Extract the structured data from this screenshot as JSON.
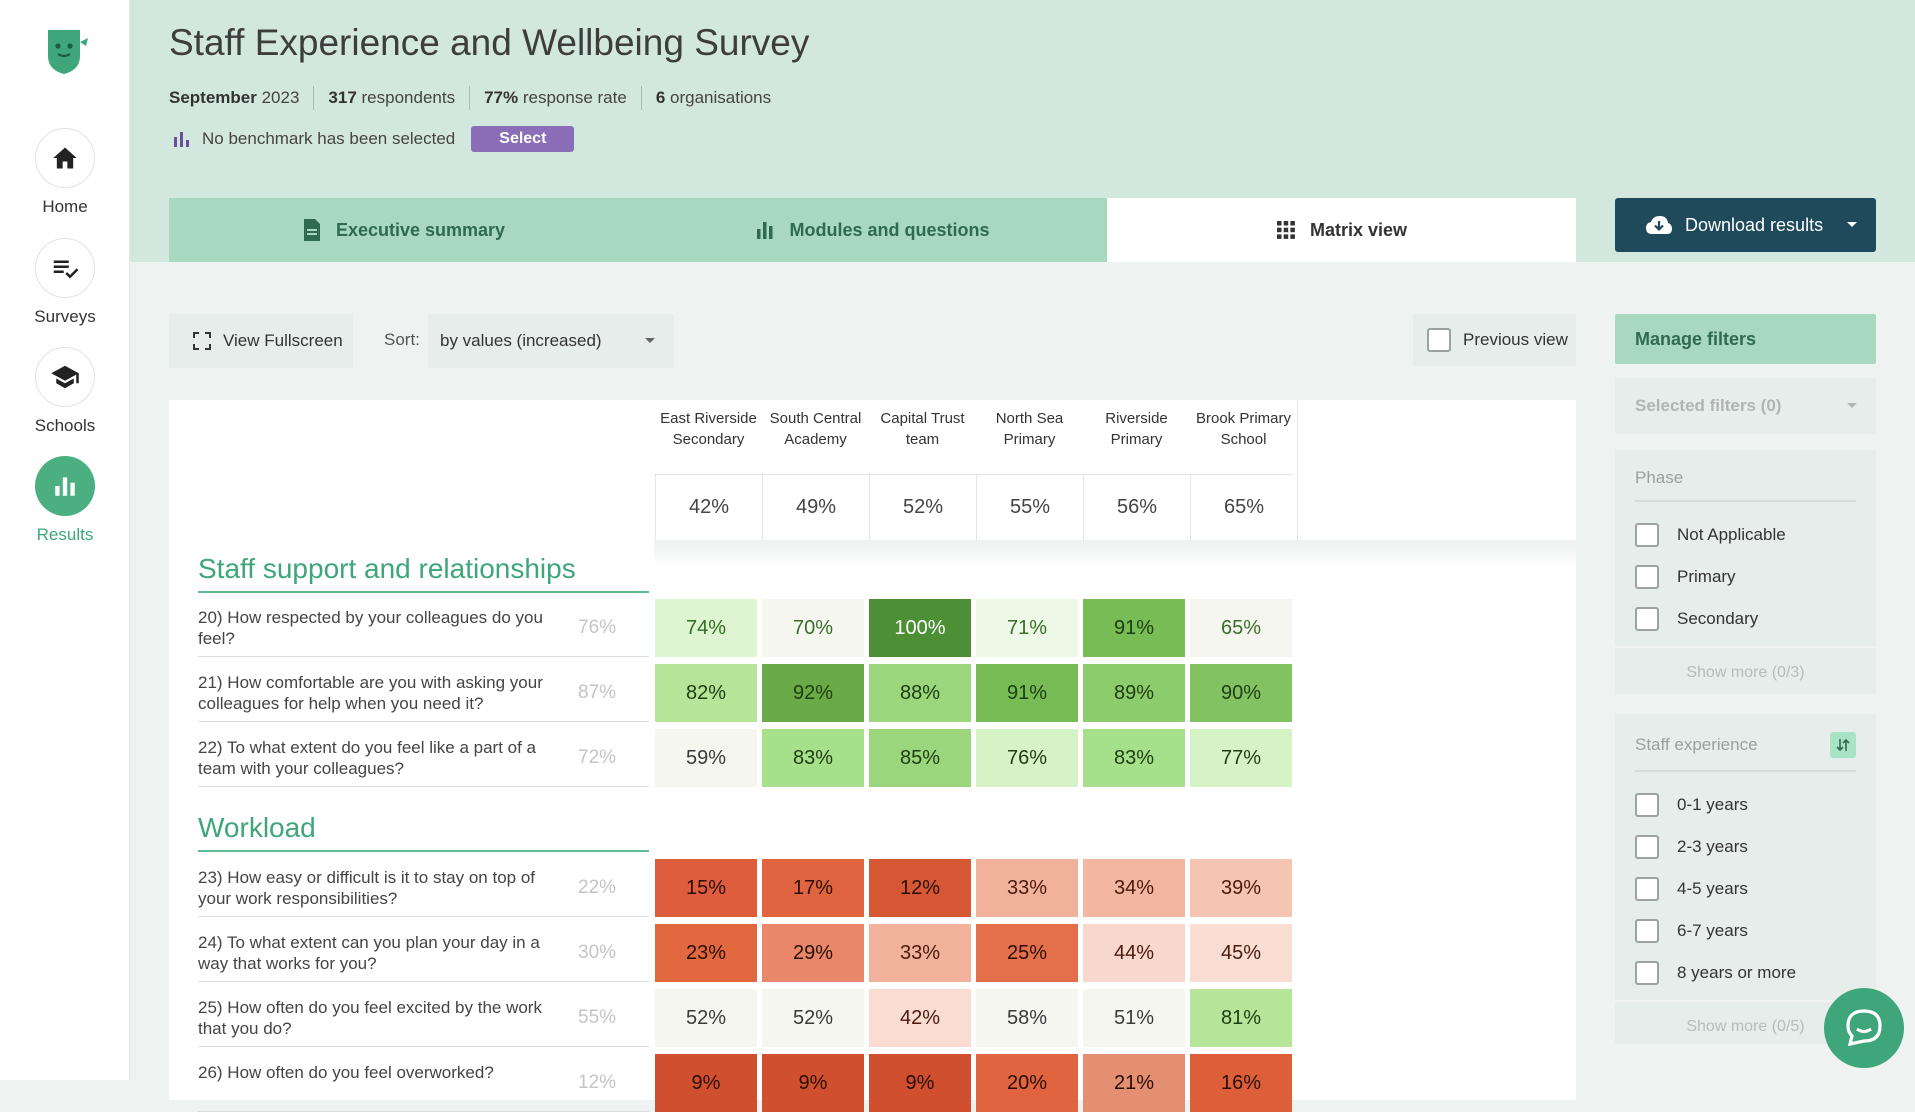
{
  "nav": [
    {
      "label": "Home",
      "icon": "home-icon"
    },
    {
      "label": "Surveys",
      "icon": "checklist-icon"
    },
    {
      "label": "Schools",
      "icon": "graduation-cap-icon"
    },
    {
      "label": "Results",
      "icon": "bar-chart-icon",
      "active": true
    }
  ],
  "header": {
    "title": "Staff Experience and Wellbeing Survey",
    "meta": {
      "date_strong": "September",
      "date_rest": " 2023",
      "respondents_strong": "317",
      "respondents_rest": " respondents",
      "rate_strong": "77%",
      "rate_rest": " response rate",
      "orgs_strong": "6",
      "orgs_rest": " organisations"
    },
    "benchmark_text": "No benchmark has been selected",
    "select_label": "Select"
  },
  "tabs": [
    {
      "label": "Executive summary",
      "icon": "document-icon"
    },
    {
      "label": "Modules and questions",
      "icon": "bar-chart-icon"
    },
    {
      "label": "Matrix view",
      "icon": "grid-icon",
      "active": true
    }
  ],
  "download_label": "Download results",
  "toolbar": {
    "fullscreen_label": "View Fullscreen",
    "sort_label": "Sort:",
    "sort_value": "by values (increased)",
    "previous_view_label": "Previous view"
  },
  "matrix": {
    "columns": [
      {
        "name": "East Riverside Secondary",
        "overall": "42%"
      },
      {
        "name": "South Central Academy",
        "overall": "49%"
      },
      {
        "name": "Capital Trust team",
        "overall": "52%"
      },
      {
        "name": "North Sea Primary",
        "overall": "55%"
      },
      {
        "name": "Riverside Primary",
        "overall": "56%"
      },
      {
        "name": "Brook Primary School",
        "overall": "65%"
      }
    ],
    "sections": [
      {
        "title": "Staff support and relationships",
        "questions": [
          {
            "text": "20) How respected by your colleagues do you feel?",
            "avg": "76%",
            "values": [
              "74%",
              "70%",
              "100%",
              "71%",
              "91%",
              "65%"
            ]
          },
          {
            "text": "21) How comfortable are you with asking your colleagues for help when you need it?",
            "avg": "87%",
            "values": [
              "82%",
              "92%",
              "88%",
              "91%",
              "89%",
              "90%"
            ]
          },
          {
            "text": "22) To what extent do you feel like a part of a team with your colleagues?",
            "avg": "72%",
            "values": [
              "59%",
              "83%",
              "85%",
              "76%",
              "83%",
              "77%"
            ]
          }
        ]
      },
      {
        "title": "Workload",
        "questions": [
          {
            "text": "23) How easy or difficult is it to stay on top of your work responsibilities?",
            "avg": "22%",
            "values": [
              "15%",
              "17%",
              "12%",
              "33%",
              "34%",
              "39%"
            ]
          },
          {
            "text": "24) To what extent can you plan your day in a way that works for you?",
            "avg": "30%",
            "values": [
              "23%",
              "29%",
              "33%",
              "25%",
              "44%",
              "45%"
            ]
          },
          {
            "text": "25) How often do you feel excited by the work that you do?",
            "avg": "55%",
            "values": [
              "52%",
              "52%",
              "42%",
              "58%",
              "51%",
              "81%"
            ]
          },
          {
            "text": "26) How often do you feel overworked?",
            "avg": "12%",
            "values": [
              "9%",
              "9%",
              "9%",
              "20%",
              "21%",
              "16%"
            ]
          }
        ]
      }
    ],
    "cell_colors": [
      [
        [
          "#dff5d2",
          "#2f6e1f"
        ],
        [
          "#f6f6f1",
          "#3a6e2a"
        ],
        [
          "#4c8f34",
          "#ffffff"
        ],
        [
          "#edf8e6",
          "#3a6e2a"
        ],
        [
          "#78bc55",
          "#1e3d12"
        ],
        [
          "#f6f6f1",
          "#3a6e2a"
        ]
      ],
      [
        [
          "#b6e59a",
          "#1e3d12"
        ],
        [
          "#6aaa47",
          "#1e3d12"
        ],
        [
          "#9bd57c",
          "#1e3d12"
        ],
        [
          "#78bc55",
          "#1e3d12"
        ],
        [
          "#8dcc6c",
          "#1e3d12"
        ],
        [
          "#82c262",
          "#1e3d12"
        ]
      ],
      [
        [
          "#f6f6f1",
          "#3a3a3a"
        ],
        [
          "#a7e08a",
          "#1e3d12"
        ],
        [
          "#9bd57c",
          "#1e3d12"
        ],
        [
          "#d6f3c5",
          "#1e3d12"
        ],
        [
          "#a7e08a",
          "#1e3d12"
        ],
        [
          "#d6f3c5",
          "#1e3d12"
        ]
      ],
      [
        [
          "#de5d3c",
          "#2a0e06"
        ],
        [
          "#e0643f",
          "#2a0e06"
        ],
        [
          "#d65734",
          "#2a0e06"
        ],
        [
          "#f2b19a",
          "#4a1a0c"
        ],
        [
          "#f3b6a0",
          "#4a1a0c"
        ],
        [
          "#f6c4b2",
          "#4a1a0c"
        ]
      ],
      [
        [
          "#e2683f",
          "#2a0e06"
        ],
        [
          "#e8876a",
          "#2a0e06"
        ],
        [
          "#f2b19a",
          "#4a1a0c"
        ],
        [
          "#e4704b",
          "#2a0e06"
        ],
        [
          "#f8d8cc",
          "#4a1a0c"
        ],
        [
          "#f9ddd3",
          "#4a1a0c"
        ]
      ],
      [
        [
          "#f6f6f1",
          "#3a3a3a"
        ],
        [
          "#f6f6f1",
          "#3a3a3a"
        ],
        [
          "#fadcd2",
          "#4a1a0c"
        ],
        [
          "#f6f6f1",
          "#3a3a3a"
        ],
        [
          "#f6f6f1",
          "#3a3a3a"
        ],
        [
          "#b6e59a",
          "#1e3d12"
        ]
      ],
      [
        [
          "#d04f2e",
          "#2a0e06"
        ],
        [
          "#d04f2e",
          "#2a0e06"
        ],
        [
          "#d04f2e",
          "#2a0e06"
        ],
        [
          "#e0643f",
          "#2a0e06"
        ],
        [
          "#e58f72",
          "#2a0e06"
        ],
        [
          "#dc5f39",
          "#2a0e06"
        ]
      ]
    ]
  },
  "filters": {
    "manage_label": "Manage filters",
    "selected_label": "Selected filters (0)",
    "groups": [
      {
        "title": "Phase",
        "options": [
          "Not Applicable",
          "Primary",
          "Secondary"
        ],
        "show_more": "Show more (0/3)"
      },
      {
        "title": "Staff experience",
        "options": [
          "0-1 years",
          "2-3 years",
          "4-5 years",
          "6-7 years",
          "8 years or more"
        ],
        "show_more": "Show more (0/5)"
      }
    ]
  },
  "colors": {
    "accent": "#3ea67a",
    "header_bg": "#d2e7de",
    "tab_bg": "#a8d8c0",
    "download_bg": "#1f4a5b",
    "select_bg": "#8a6eb8"
  }
}
